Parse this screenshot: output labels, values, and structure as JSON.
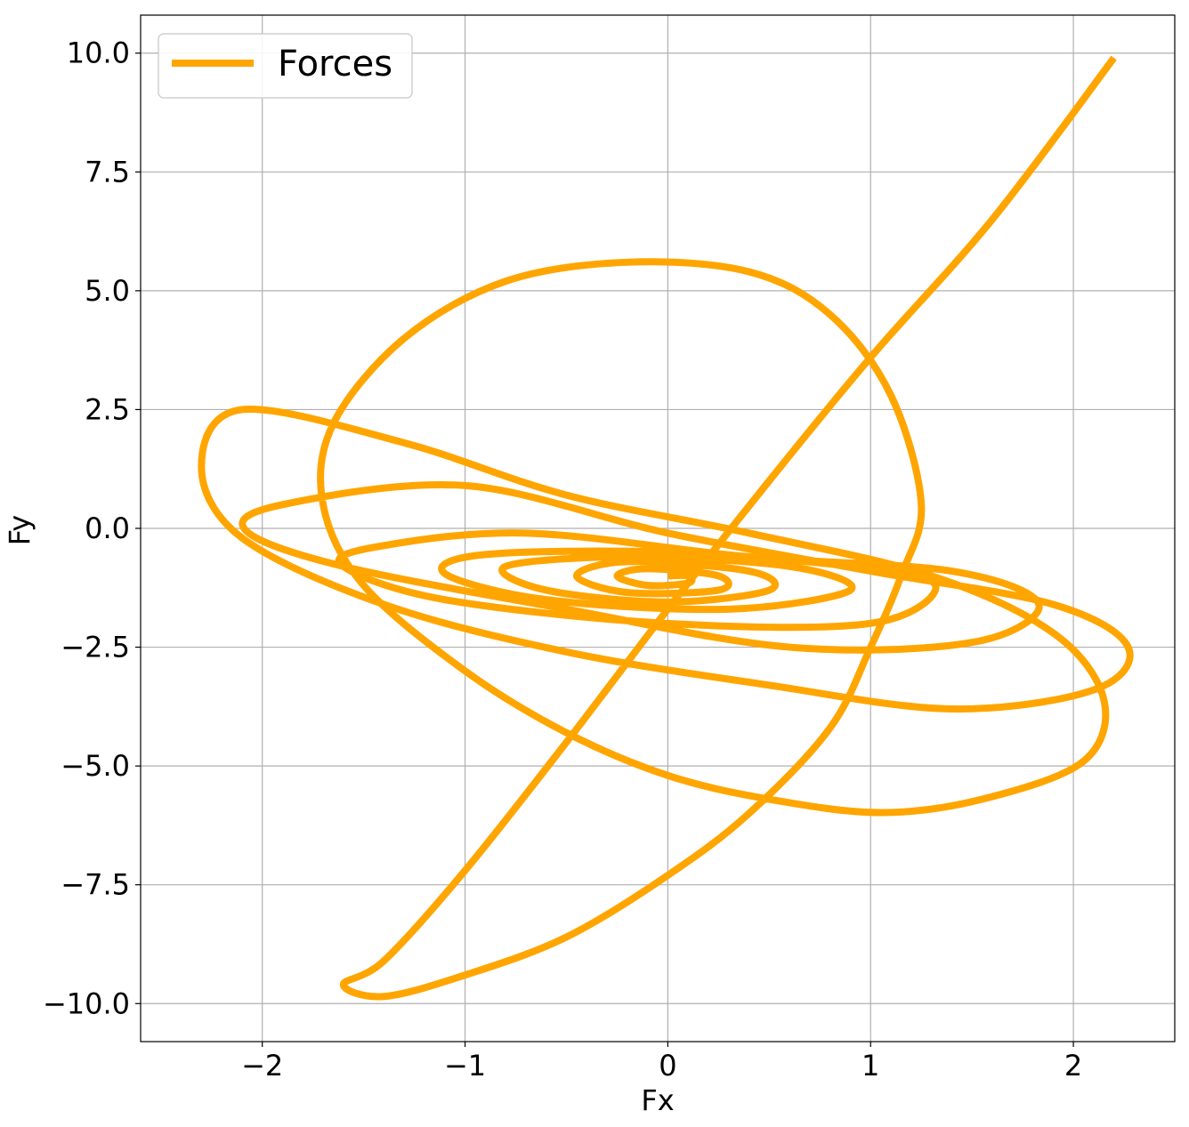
{
  "chart_data": {
    "type": "line",
    "title": "",
    "xlabel": "Fx",
    "ylabel": "Fy",
    "xlim": [
      -2.6,
      2.5
    ],
    "ylim": [
      -10.8,
      10.8
    ],
    "xticks": [
      -2,
      -1,
      0,
      1,
      2
    ],
    "xtick_labels": [
      "−2",
      "−1",
      "0",
      "1",
      "2"
    ],
    "yticks": [
      -10,
      -7.5,
      -5,
      -2.5,
      0,
      2.5,
      5,
      7.5,
      10
    ],
    "ytick_labels": [
      "−10.0",
      "−7.5",
      "−5.0",
      "−2.5",
      "0.0",
      "2.5",
      "5.0",
      "7.5",
      "10.0"
    ],
    "grid": true,
    "legend": {
      "position": "upper-left",
      "entries": [
        "Forces"
      ]
    },
    "series": [
      {
        "name": "Forces",
        "color": "#FFA500",
        "points": [
          [
            2.2,
            9.9
          ],
          [
            1.6,
            6.5
          ],
          [
            1.0,
            3.6
          ],
          [
            0.5,
            1.0
          ],
          [
            0.0,
            -1.7
          ],
          [
            -0.5,
            -4.5
          ],
          [
            -1.0,
            -7.2
          ],
          [
            -1.4,
            -9.1
          ],
          [
            -1.6,
            -9.6
          ],
          [
            -1.4,
            -9.85
          ],
          [
            -1.0,
            -9.4
          ],
          [
            -0.5,
            -8.6
          ],
          [
            0.0,
            -7.3
          ],
          [
            0.4,
            -6.0
          ],
          [
            0.8,
            -4.2
          ],
          [
            1.0,
            -2.5
          ],
          [
            1.15,
            -1.0
          ],
          [
            1.25,
            0.5
          ],
          [
            1.1,
            2.8
          ],
          [
            0.8,
            4.5
          ],
          [
            0.4,
            5.4
          ],
          [
            -0.2,
            5.6
          ],
          [
            -0.8,
            5.2
          ],
          [
            -1.3,
            4.0
          ],
          [
            -1.65,
            2.2
          ],
          [
            -1.7,
            0.5
          ],
          [
            -1.5,
            -1.2
          ],
          [
            -1.0,
            -3.0
          ],
          [
            -0.5,
            -4.3
          ],
          [
            0.0,
            -5.2
          ],
          [
            0.5,
            -5.7
          ],
          [
            1.05,
            -5.98
          ],
          [
            1.55,
            -5.7
          ],
          [
            2.05,
            -4.9
          ],
          [
            2.15,
            -3.6
          ],
          [
            1.9,
            -2.2
          ],
          [
            1.3,
            -1.0
          ],
          [
            0.4,
            -0.1
          ],
          [
            -0.5,
            0.7
          ],
          [
            -1.3,
            1.8
          ],
          [
            -2.1,
            2.5
          ],
          [
            -2.3,
            1.3
          ],
          [
            -2.1,
            -0.2
          ],
          [
            -1.4,
            -1.6
          ],
          [
            -0.5,
            -2.6
          ],
          [
            0.5,
            -3.3
          ],
          [
            1.4,
            -3.8
          ],
          [
            2.1,
            -3.4
          ],
          [
            2.27,
            -2.5
          ],
          [
            1.9,
            -1.6
          ],
          [
            1.0,
            -0.9
          ],
          [
            0.0,
            -0.1
          ],
          [
            -1.0,
            0.9
          ],
          [
            -1.9,
            0.5
          ],
          [
            -2.08,
            -0.05
          ],
          [
            -1.6,
            -0.8
          ],
          [
            -0.5,
            -1.7
          ],
          [
            0.6,
            -2.5
          ],
          [
            1.5,
            -2.4
          ],
          [
            1.83,
            -1.6
          ],
          [
            1.4,
            -0.9
          ],
          [
            0.4,
            -0.6
          ],
          [
            -0.7,
            -0.1
          ],
          [
            -1.45,
            -0.4
          ],
          [
            -1.6,
            -0.8
          ],
          [
            -1.1,
            -1.5
          ],
          [
            0.0,
            -2.0
          ],
          [
            1.0,
            -2.0
          ],
          [
            1.32,
            -1.2
          ],
          [
            0.9,
            -0.8
          ],
          [
            0.0,
            -0.5
          ],
          [
            -0.9,
            -0.55
          ],
          [
            -1.1,
            -0.95
          ],
          [
            -0.6,
            -1.5
          ],
          [
            0.3,
            -1.7
          ],
          [
            0.9,
            -1.3
          ],
          [
            0.6,
            -0.8
          ],
          [
            -0.2,
            -0.6
          ],
          [
            -0.8,
            -0.8
          ],
          [
            -0.6,
            -1.3
          ],
          [
            0.0,
            -1.55
          ],
          [
            0.5,
            -1.3
          ],
          [
            0.4,
            -0.9
          ],
          [
            -0.2,
            -0.7
          ],
          [
            -0.45,
            -1.0
          ],
          [
            -0.2,
            -1.35
          ],
          [
            0.25,
            -1.3
          ],
          [
            0.25,
            -1.0
          ],
          [
            -0.1,
            -0.85
          ],
          [
            -0.25,
            -1.0
          ],
          [
            -0.1,
            -1.2
          ],
          [
            0.1,
            -1.15
          ],
          [
            0.1,
            -1.0
          ],
          [
            0.0,
            -1.0
          ]
        ]
      }
    ]
  }
}
